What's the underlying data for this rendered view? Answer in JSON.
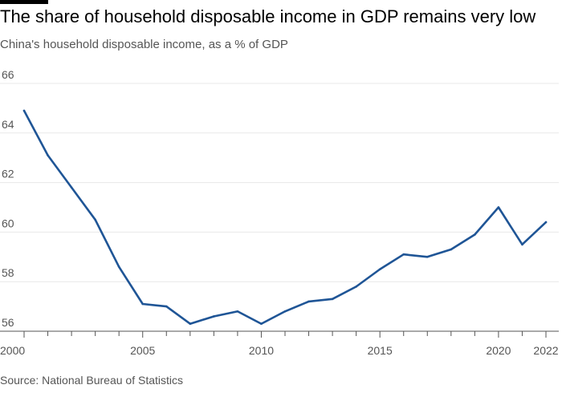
{
  "title": "The share of household disposable income in GDP remains very low",
  "subtitle": "China's household disposable income, as a % of GDP",
  "source": "Source: National Bureau of Statistics",
  "colors": {
    "line": "#1f5596",
    "grid": "#e8e8e8",
    "axis": "#555555",
    "text": "#000000",
    "muted": "#555555"
  },
  "chart_data": {
    "type": "line",
    "title": "The share of household disposable income in GDP remains very low",
    "subtitle": "China's household disposable income, as a % of GDP",
    "xlabel": "",
    "ylabel": "",
    "xlim": [
      2000,
      2022
    ],
    "ylim": [
      56,
      66
    ],
    "y_ticks": [
      56,
      58,
      60,
      62,
      64,
      66
    ],
    "x_tick_labels": [
      2000,
      2005,
      2010,
      2015,
      2020,
      2022
    ],
    "grid": true,
    "series": [
      {
        "name": "Household disposable income, % of GDP",
        "x": [
          2000,
          2001,
          2002,
          2003,
          2004,
          2005,
          2006,
          2007,
          2008,
          2009,
          2010,
          2011,
          2012,
          2013,
          2014,
          2015,
          2016,
          2017,
          2018,
          2019,
          2020,
          2021,
          2022
        ],
        "values": [
          64.9,
          63.1,
          61.8,
          60.5,
          58.6,
          57.1,
          57.0,
          56.3,
          56.6,
          56.8,
          56.3,
          56.8,
          57.2,
          57.3,
          57.8,
          58.5,
          59.1,
          59.0,
          59.3,
          59.9,
          61.0,
          59.5,
          60.4
        ]
      }
    ]
  }
}
